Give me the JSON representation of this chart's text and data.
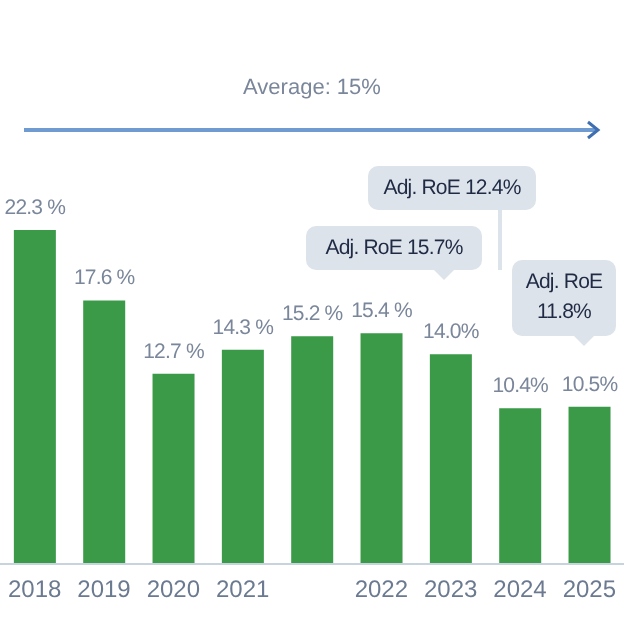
{
  "chart_data": {
    "type": "bar",
    "categories": [
      "2018",
      "2019",
      "2020",
      "2021",
      null,
      "2022",
      "2023",
      "2024",
      "2025"
    ],
    "values": [
      22.3,
      17.6,
      12.7,
      14.3,
      15.2,
      15.4,
      14.0,
      10.4,
      10.5
    ],
    "value_labels": [
      "22.3 %",
      "17.6 %",
      "12.7 %",
      "14.3 %",
      "15.2 %",
      "15.4 %",
      "14.0%",
      "10.4%",
      "10.5%"
    ],
    "color": "#3a9a47",
    "grid": false,
    "legend": false,
    "annotations": [
      "Average: 15%",
      "Adj. RoE 15.7%",
      "Adj. RoE 12.4%",
      "Adj. RoE 11.8%"
    ]
  }
}
